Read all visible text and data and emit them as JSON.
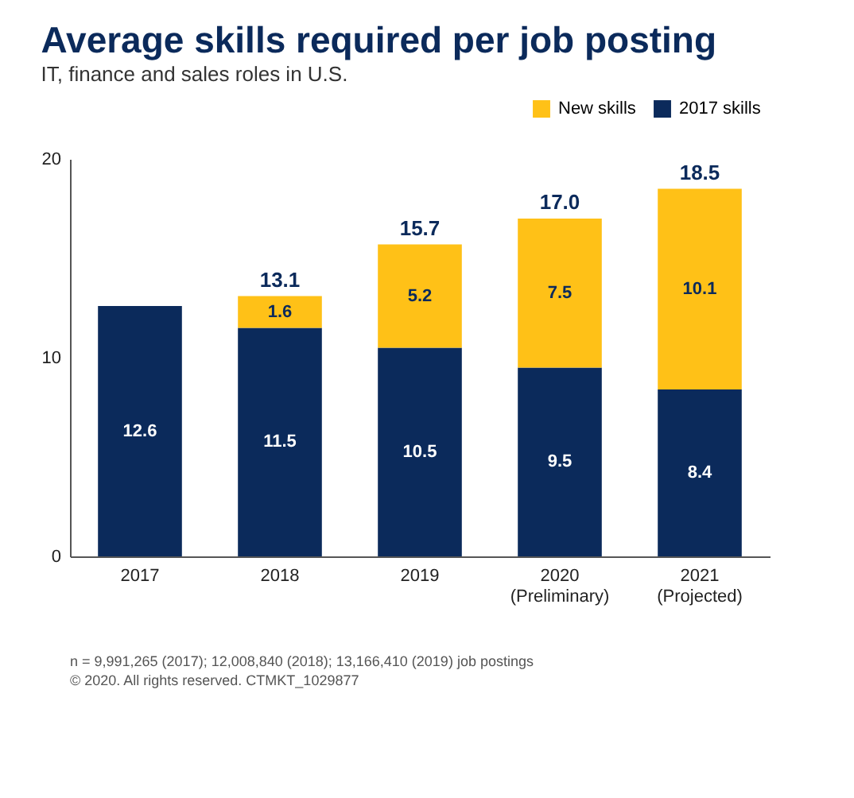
{
  "chart_data": {
    "type": "bar",
    "title": "Average skills required per job posting",
    "subtitle": "IT, finance and sales roles in U.S.",
    "categories": [
      "2017",
      "2018",
      "2019",
      "2020\n(Preliminary)",
      "2021\n(Projected)"
    ],
    "stacked": true,
    "series": [
      {
        "name": "2017 skills",
        "color": "#0b2a5b",
        "values": [
          12.6,
          11.5,
          10.5,
          9.5,
          8.4
        ]
      },
      {
        "name": "New skills",
        "color": "#ffc117",
        "values": [
          null,
          1.6,
          5.2,
          7.5,
          10.1
        ]
      }
    ],
    "totals": [
      null,
      "13.1",
      "15.7",
      "17.0",
      "18.5"
    ],
    "data_labels": true,
    "ylim": [
      0,
      20
    ],
    "yticks": [
      0,
      10,
      20
    ],
    "grid": false,
    "legend": "top right",
    "annotations": [
      "n = 9,991,265 (2017); 12,008,840 (2018); 13,166,410 (2019) job postings",
      "© 2020. All rights reserved. CTMKT_1029877"
    ]
  }
}
